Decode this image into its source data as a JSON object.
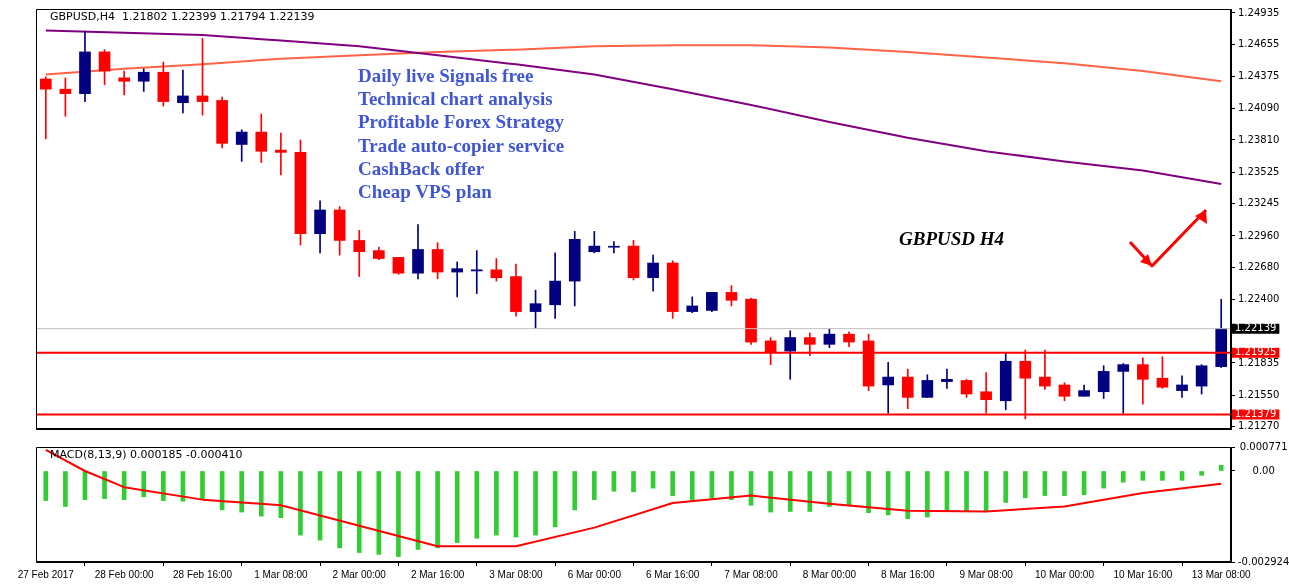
{
  "chart_data": [
    {
      "type": "candlestick",
      "title": "GBPUSD,H4  1.21802 1.22399 1.21794 1.22139",
      "categories": [
        null,
        null,
        null,
        null,
        null,
        null,
        null,
        null,
        null,
        null,
        null,
        null,
        null,
        null,
        null,
        null,
        null,
        null,
        null,
        null,
        null,
        null,
        null,
        null,
        null,
        null,
        null,
        null,
        null,
        null,
        null,
        null,
        null,
        null,
        null,
        null,
        null,
        null,
        null,
        null,
        null,
        null,
        null,
        null,
        null,
        null,
        null,
        null,
        null,
        null,
        null,
        null,
        null,
        null,
        null,
        null,
        null,
        null,
        null,
        null,
        null
      ],
      "ohlc": [
        [
          1.2435,
          1.2437,
          1.2382,
          1.2426
        ],
        [
          1.2426,
          1.2436,
          1.2402,
          1.2422
        ],
        [
          1.2422,
          1.2477,
          1.2415,
          1.2459
        ],
        [
          1.2459,
          1.2461,
          1.243,
          1.2442
        ],
        [
          1.2436,
          1.2442,
          1.2421,
          1.2433
        ],
        [
          1.2433,
          1.2444,
          1.2424,
          1.2441
        ],
        [
          1.2441,
          1.245,
          1.2411,
          1.2415
        ],
        [
          1.2414,
          1.2443,
          1.2405,
          1.242
        ],
        [
          1.242,
          1.2471,
          1.2403,
          1.2415
        ],
        [
          1.2416,
          1.2419,
          1.2374,
          1.2378
        ],
        [
          1.2377,
          1.239,
          1.2362,
          1.2388
        ],
        [
          1.2388,
          1.2404,
          1.2361,
          1.2371
        ],
        [
          1.2372,
          1.2387,
          1.235,
          1.237
        ],
        [
          1.237,
          1.2381,
          1.2288,
          1.2298
        ],
        [
          1.2298,
          1.2327,
          1.2281,
          1.2319
        ],
        [
          1.2319,
          1.2322,
          1.2279,
          1.2292
        ],
        [
          1.2292,
          1.2301,
          1.226,
          1.2282
        ],
        [
          1.2283,
          1.2286,
          1.2275,
          1.2276
        ],
        [
          1.2277,
          1.2277,
          1.2262,
          1.2263
        ],
        [
          1.2263,
          1.2306,
          1.2258,
          1.2284
        ],
        [
          1.2284,
          1.229,
          1.2258,
          1.2264
        ],
        [
          1.2264,
          1.2273,
          1.2242,
          1.2267
        ],
        [
          1.2265,
          1.2283,
          1.2245,
          1.2266
        ],
        [
          1.2266,
          1.2276,
          1.2256,
          1.2259
        ],
        [
          1.226,
          1.2271,
          1.2225,
          1.2229
        ],
        [
          1.2229,
          1.2248,
          1.2214,
          1.2236
        ],
        [
          1.2235,
          1.2281,
          1.2223,
          1.2256
        ],
        [
          1.2256,
          1.23,
          1.2234,
          1.2293
        ],
        [
          1.2282,
          1.23,
          1.2281,
          1.2287
        ],
        [
          1.2286,
          1.2291,
          1.2281,
          1.2286
        ],
        [
          1.2287,
          1.2292,
          1.2257,
          1.2259
        ],
        [
          1.2259,
          1.2279,
          1.2247,
          1.2272
        ],
        [
          1.2272,
          1.2274,
          1.2223,
          1.2229
        ],
        [
          1.2229,
          1.2242,
          1.2228,
          1.2234
        ],
        [
          1.223,
          1.2246,
          1.2229,
          1.2246
        ],
        [
          1.2246,
          1.2252,
          1.2234,
          1.2239
        ],
        [
          1.224,
          1.2241,
          1.22,
          1.2202
        ],
        [
          1.2203,
          1.2206,
          1.2182,
          1.2193
        ],
        [
          1.2194,
          1.2212,
          1.2169,
          1.2206
        ],
        [
          1.2206,
          1.221,
          1.219,
          1.22
        ],
        [
          1.22,
          1.2214,
          1.2197,
          1.2209
        ],
        [
          1.2209,
          1.2211,
          1.2198,
          1.2202
        ],
        [
          1.2203,
          1.2209,
          1.2159,
          1.2163
        ],
        [
          1.2164,
          1.2184,
          1.2139,
          1.2171
        ],
        [
          1.2171,
          1.2178,
          1.2143,
          1.2153
        ],
        [
          1.2153,
          1.2173,
          1.2153,
          1.2168
        ],
        [
          1.2167,
          1.2178,
          1.2161,
          1.2169
        ],
        [
          1.2168,
          1.2169,
          1.2153,
          1.2156
        ],
        [
          1.2158,
          1.2175,
          1.2139,
          1.2151
        ],
        [
          1.215,
          1.2193,
          1.2142,
          1.2185
        ],
        [
          1.2185,
          1.2195,
          1.2134,
          1.217
        ],
        [
          1.2171,
          1.2195,
          1.216,
          1.2163
        ],
        [
          1.2164,
          1.2166,
          1.215,
          1.2154
        ],
        [
          1.2154,
          1.2164,
          1.2154,
          1.2159
        ],
        [
          1.2158,
          1.2181,
          1.2152,
          1.2176
        ],
        [
          1.2176,
          1.2183,
          1.2139,
          1.2182
        ],
        [
          1.2182,
          1.2188,
          1.2147,
          1.2169
        ],
        [
          1.217,
          1.2189,
          1.2161,
          1.2162
        ],
        [
          1.2159,
          1.2172,
          1.2153,
          1.2164
        ],
        [
          1.2163,
          1.2182,
          1.2156,
          1.2181
        ],
        [
          1.21802,
          1.22399,
          1.21794,
          1.22139
        ]
      ],
      "colors": [
        "#ff0000",
        "#ff0000",
        "#000080",
        "#ff0000",
        "#ff0000",
        "#000080",
        "#ff0000",
        "#000080",
        "#ff0000",
        "#ff0000",
        "#000080",
        "#ff0000",
        "#ff0000",
        "#ff0000",
        "#000080",
        "#ff0000",
        "#ff0000",
        "#ff0000",
        "#ff0000",
        "#000080",
        "#ff0000",
        "#000080",
        "#000080",
        "#ff0000",
        "#ff0000",
        "#000080",
        "#000080",
        "#000080",
        "#000080",
        "#000080",
        "#ff0000",
        "#000080",
        "#ff0000",
        "#000080",
        "#000080",
        "#ff0000",
        "#ff0000",
        "#ff0000",
        "#000080",
        "#ff0000",
        "#000080",
        "#ff0000",
        "#ff0000",
        "#000080",
        "#ff0000",
        "#000080",
        "#000080",
        "#ff0000",
        "#ff0000",
        "#000080",
        "#ff0000",
        "#ff0000",
        "#ff0000",
        "#000080",
        "#000080",
        "#000080",
        "#ff0000",
        "#ff0000",
        "#000080",
        "#000080",
        "#000080"
      ],
      "series": [
        {
          "type": "line",
          "color": "#800080",
          "values": [
            1.2478,
            null,
            null,
            null,
            1.2476,
            null,
            null,
            null,
            1.2474,
            null,
            null,
            null,
            1.2469,
            null,
            null,
            null,
            1.2464,
            null,
            null,
            null,
            1.2456,
            null,
            null,
            null,
            1.2448,
            null,
            null,
            null,
            1.2439,
            null,
            null,
            null,
            1.2426,
            null,
            null,
            null,
            1.2412,
            null,
            null,
            null,
            1.2397,
            null,
            null,
            null,
            1.2383,
            null,
            null,
            null,
            1.2371,
            null,
            null,
            null,
            1.2362,
            null,
            null,
            null,
            1.2354,
            null,
            null,
            null,
            1.2342
          ]
        },
        {
          "type": "line",
          "color": "#ff6347",
          "values": [
            1.2439,
            null,
            null,
            null,
            1.2444,
            null,
            null,
            null,
            1.2448,
            null,
            null,
            null,
            1.2453,
            null,
            null,
            null,
            1.2456,
            null,
            null,
            null,
            1.2459,
            null,
            null,
            null,
            1.2461,
            null,
            null,
            null,
            1.2464,
            null,
            null,
            null,
            1.2465,
            null,
            null,
            null,
            1.2465,
            null,
            null,
            null,
            1.2463,
            null,
            null,
            null,
            1.2459,
            null,
            null,
            null,
            1.2454,
            null,
            null,
            null,
            1.2449,
            null,
            null,
            null,
            1.2442,
            null,
            null,
            null,
            1.2433
          ]
        }
      ],
      "ylim": [
        1.2125,
        1.2497
      ],
      "yticks": [
        1.24935,
        1.24655,
        1.24375,
        {
          "value": 1.2409,
          "label": "1.24090"
        },
        {
          "value": 1.2381,
          "label": "1.23810"
        },
        1.23525,
        1.23245,
        {
          "value": 1.2296,
          "label": "1.22960"
        },
        {
          "value": 1.2268,
          "label": "1.22680"
        },
        {
          "value": 1.224,
          "label": "1.22400"
        },
        1.21835,
        {
          "value": 1.2155,
          "label": "1.21550"
        },
        {
          "value": 1.2127,
          "label": "1.21270"
        }
      ],
      "ref_lines": [
        {
          "axis": "y",
          "value": 1.22139,
          "label": "1.22139",
          "color": "#c0c0c0"
        },
        {
          "axis": "y",
          "value": 1.21925,
          "label": "1.21925",
          "color": "#ff0000"
        },
        {
          "axis": "y",
          "value": 1.21379,
          "label": "1.21379",
          "color": "#ff0000"
        }
      ],
      "annotations": [
        "Daily live Signals free",
        "Technical chart analysis",
        "Profitable Forex Strategy",
        "Trade auto-copier service",
        "CashBack offer",
        "Cheap VPS plan",
        "GBPUSD H4"
      ]
    },
    {
      "type": "bar",
      "title": "MACD(8,13,9) 0.000185 -0.000410",
      "categories": [
        "27 Feb 2017",
        null,
        null,
        null,
        "28 Feb 00:00",
        null,
        null,
        null,
        "28 Feb 16:00",
        null,
        null,
        null,
        "1 Mar 08:00",
        null,
        null,
        null,
        "2 Mar 00:00",
        null,
        null,
        null,
        "2 Mar 16:00",
        null,
        null,
        null,
        "3 Mar 08:00",
        null,
        null,
        null,
        "6 Mar 00:00",
        null,
        null,
        null,
        "6 Mar 16:00",
        null,
        null,
        null,
        "7 Mar 08:00",
        null,
        null,
        null,
        "8 Mar 00:00",
        null,
        null,
        null,
        "8 Mar 16:00",
        null,
        null,
        null,
        "9 Mar 08:00",
        null,
        null,
        null,
        "10 Mar 00:00",
        null,
        null,
        null,
        "10 Mar 16:00",
        null,
        null,
        null,
        "13 Mar 08:00"
      ],
      "series": [
        {
          "color": "#32cd32",
          "values": [
            -0.00095,
            -0.00114,
            -0.00092,
            -0.00089,
            -0.00092,
            -0.00083,
            -0.00095,
            -0.00097,
            -0.00092,
            -0.00125,
            -0.00132,
            -0.00145,
            -0.0015,
            -0.00206,
            -0.00222,
            -0.00247,
            -0.00262,
            -0.00268,
            -0.00275,
            -0.00252,
            -0.00246,
            -0.0023,
            -0.00216,
            -0.00206,
            -0.00212,
            -0.00206,
            -0.00179,
            -0.00125,
            -0.00092,
            -0.00065,
            -0.00067,
            -0.00055,
            -0.00079,
            -0.00092,
            -0.00086,
            -0.00092,
            -0.0011,
            -0.00132,
            -0.0013,
            -0.0013,
            -0.00114,
            -0.00108,
            -0.00134,
            -0.00141,
            -0.00153,
            -0.00148,
            -0.00128,
            -0.00128,
            -0.00128,
            -0.00101,
            -0.00086,
            -0.00079,
            -0.00079,
            -0.00076,
            -0.00055,
            -0.00036,
            -0.0003,
            -0.0003,
            -0.0003,
            -0.00014,
            0.000185
          ]
        },
        {
          "type": "line",
          "color": "#ff0000",
          "values": [
            0.00068,
            null,
            0,
            null,
            -0.00052,
            null,
            null,
            null,
            -0.00092,
            null,
            null,
            null,
            -0.0011,
            null,
            null,
            null,
            -0.00176,
            null,
            null,
            null,
            -0.00242,
            null,
            null,
            null,
            -0.00242,
            null,
            null,
            null,
            -0.00182,
            null,
            null,
            null,
            -0.00103,
            null,
            null,
            null,
            -0.00079,
            null,
            null,
            null,
            -0.00105,
            null,
            null,
            null,
            -0.00128,
            null,
            null,
            null,
            -0.0013,
            null,
            null,
            null,
            -0.00114,
            null,
            null,
            null,
            -0.00071,
            null,
            null,
            null,
            -0.00041
          ]
        }
      ],
      "ylim": [
        -0.002924,
        0.000771
      ],
      "yticks": [
        0.000771,
        {
          "value": 0,
          "label": "0.00"
        },
        -0.002924
      ]
    }
  ]
}
